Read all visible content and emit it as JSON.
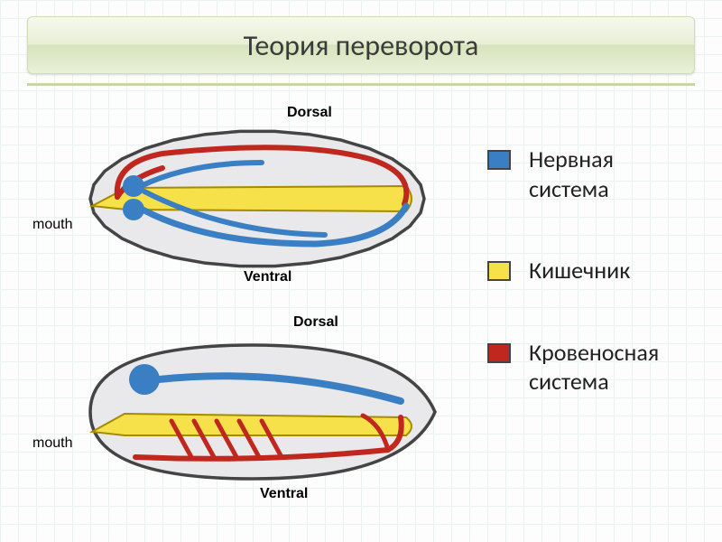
{
  "title": "Теория переворота",
  "legend": [
    {
      "label": "Нервная\nсистема",
      "color": "#3a7fc4"
    },
    {
      "label": "Кишечник",
      "color": "#f6e14a"
    },
    {
      "label": "Кровеносная\nсистема",
      "color": "#c0281f"
    }
  ],
  "colors": {
    "body_fill": "#e9e8ea",
    "body_stroke": "#444444",
    "gut_fill": "#f6e14a",
    "gut_stroke": "#a68b00",
    "nerve": "#3a7fc4",
    "blood": "#c0281f"
  },
  "annotations": {
    "dorsal": "Dorsal",
    "ventral": "Ventral",
    "mouth": "mouth"
  },
  "layout": {
    "title_fontsize": 32,
    "legend_fontsize": 26,
    "ann_fontsize": 16,
    "swatch_border": "#444444"
  }
}
